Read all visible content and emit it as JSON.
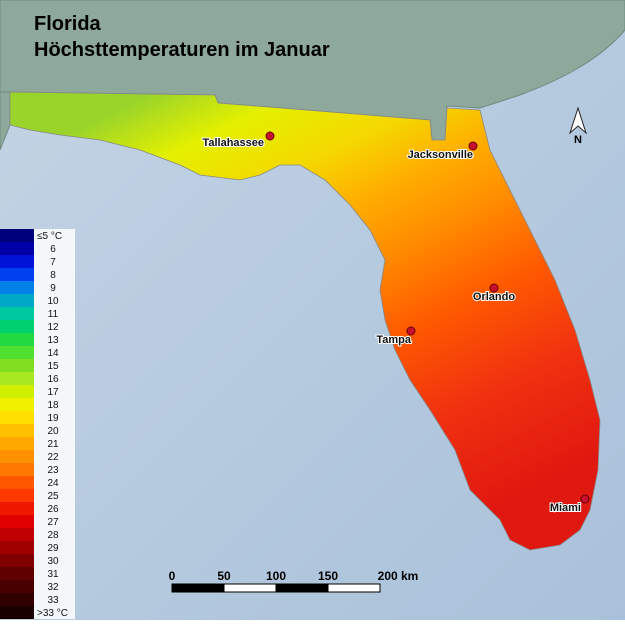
{
  "title": [
    "Florida",
    "Höchsttemperaturen im Januar"
  ],
  "north": "N",
  "cities": [
    "Tallahassee",
    "Jacksonville",
    "Orlando",
    "Tampa",
    "Miami"
  ],
  "legend": {
    "labels": [
      "≤5 °C",
      "6",
      "7",
      "8",
      "9",
      "10",
      "11",
      "12",
      "13",
      "14",
      "15",
      "16",
      "17",
      "18",
      "19",
      "20",
      "21",
      "22",
      "23",
      "24",
      "25",
      "26",
      "27",
      "28",
      "29",
      "30",
      "31",
      "32",
      "33",
      ">33 °C"
    ],
    "colors": [
      "#00007a",
      "#0000a8",
      "#0014d8",
      "#0040f0",
      "#0080e8",
      "#00a8c8",
      "#00c8a0",
      "#00d070",
      "#20d840",
      "#50e030",
      "#80e020",
      "#a8e820",
      "#d0f000",
      "#f0f000",
      "#ffe000",
      "#ffc000",
      "#ffa800",
      "#ff9000",
      "#ff7800",
      "#ff5800",
      "#ff3800",
      "#f01800",
      "#e00000",
      "#c00000",
      "#a00000",
      "#800000",
      "#600000",
      "#480000",
      "#300000",
      "#180000"
    ]
  },
  "scale": [
    "0",
    "50",
    "100",
    "150",
    "200 km"
  ]
}
